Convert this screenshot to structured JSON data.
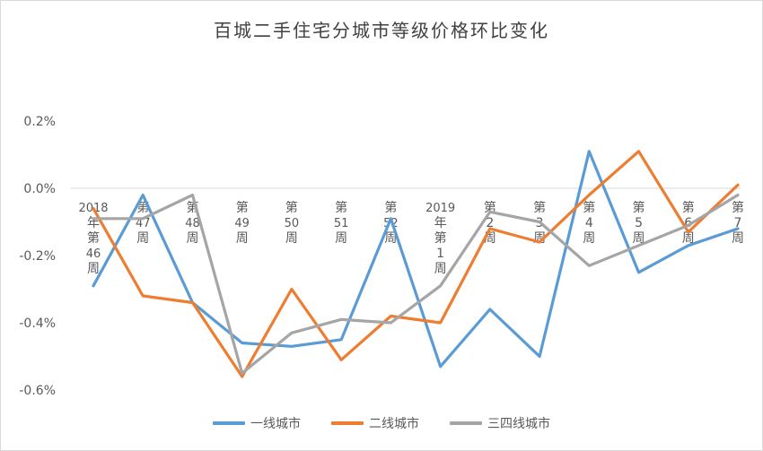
{
  "chart_data": {
    "type": "line",
    "title": "百城二手住宅分城市等级价格环比变化",
    "xlabel": "",
    "ylabel": "",
    "ylim": [
      -0.6,
      0.2
    ],
    "y_ticks": [
      "0.2%",
      "0.0%",
      "-0.2%",
      "-0.4%",
      "-0.6%"
    ],
    "y_tick_values": [
      0.2,
      0.0,
      -0.2,
      -0.4,
      -0.6
    ],
    "categories": [
      "2018年第46周",
      "第47周",
      "第48周",
      "第49周",
      "第50周",
      "第51周",
      "第52周",
      "2019年第1周",
      "第2周",
      "第3周",
      "第4周",
      "第5周",
      "第6周",
      "第7周"
    ],
    "grid": false,
    "legend_position": "bottom",
    "series": [
      {
        "name": "一线城市",
        "color": "#5b9bd5",
        "values": [
          -0.29,
          -0.02,
          -0.34,
          -0.46,
          -0.47,
          -0.45,
          -0.09,
          -0.53,
          -0.36,
          -0.5,
          0.11,
          -0.25,
          -0.17,
          -0.12
        ]
      },
      {
        "name": "二线城市",
        "color": "#ed7d31",
        "values": [
          -0.06,
          -0.32,
          -0.34,
          -0.56,
          -0.3,
          -0.51,
          -0.38,
          -0.4,
          -0.12,
          -0.16,
          -0.02,
          0.11,
          -0.13,
          0.01
        ]
      },
      {
        "name": "三四线城市",
        "color": "#a5a5a5",
        "values": [
          -0.09,
          -0.09,
          -0.02,
          -0.55,
          -0.43,
          -0.39,
          -0.4,
          -0.29,
          -0.07,
          -0.1,
          -0.23,
          -0.17,
          -0.11,
          -0.02
        ]
      }
    ]
  }
}
